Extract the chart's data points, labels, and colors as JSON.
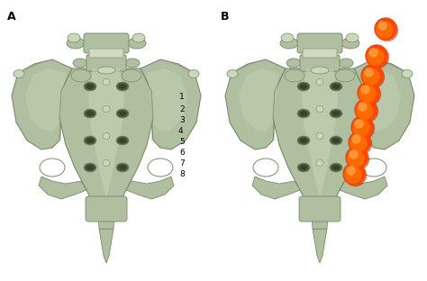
{
  "figsize": [
    4.74,
    3.12
  ],
  "dpi": 100,
  "bg_color": "#ffffff",
  "panel_A_label": "A",
  "panel_B_label": "B",
  "label_fontsize": 9,
  "numbers": [
    "1",
    "2",
    "3",
    "4",
    "5",
    "6",
    "7",
    "8"
  ],
  "num_fontsize": 6.5,
  "sphere_color_outer": "#FF4500",
  "sphere_color_mid": "#FF6A00",
  "sphere_color_highlight": "#FFA040",
  "bone_base": "#b0bfa0",
  "bone_dark": "#7a8a6a",
  "bone_light": "#c8d8b8",
  "bone_shadow": "#506040"
}
